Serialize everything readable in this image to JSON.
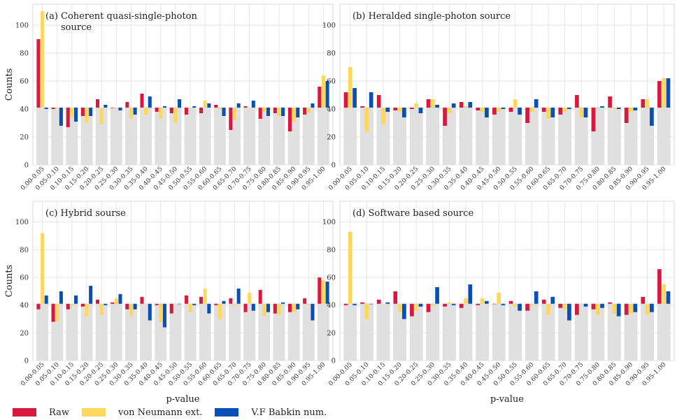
{
  "colors": {
    "raw": "#d7193f",
    "von_neumann": "#fdd85d",
    "babkin": "#0a4fb4",
    "baseline": "#e0e0e0",
    "grid": "#e6e6e6"
  },
  "chart_data": [
    {
      "type": "bar",
      "panel": "a",
      "title": "(a) Coherent quasi-single-photon",
      "title_line2": "source",
      "xlabel": "",
      "ylabel": "Counts",
      "ylim": [
        0,
        115
      ],
      "yticks": [
        0,
        20,
        40,
        60,
        80,
        100
      ],
      "baseline": 41,
      "grid": true,
      "categories": [
        "0.00-0.05",
        "0.05-0.10",
        "0.10-0.15",
        "0.15-0.20",
        "0.20-0.25",
        "0.25-0.30",
        "0.30-0.35",
        "0.35-0.40",
        "0.40-0.45",
        "0.45-0.50",
        "0.50-0.55",
        "0.55-0.60",
        "0.60-0.65",
        "0.65-0.70",
        "0.70-0.75",
        "0.75-0.80",
        "0.80-0.85",
        "0.85-0.90",
        "0.90-0.95",
        "0.95-1.00"
      ],
      "series": [
        {
          "name": "Raw",
          "values": [
            90,
            40,
            27,
            35,
            47,
            41,
            45,
            51,
            38,
            37,
            36,
            37,
            43,
            25,
            42,
            33,
            37,
            24,
            36,
            56
          ]
        },
        {
          "name": "von Neumann ext.",
          "values": [
            110,
            40,
            34,
            30,
            29,
            41,
            33,
            36,
            33,
            30,
            41,
            46,
            40,
            32,
            41,
            38,
            35,
            31,
            37,
            64
          ]
        },
        {
          "name": "V.F Babkin num.",
          "values": [
            40,
            28,
            31,
            35,
            43,
            39,
            36,
            49,
            42,
            47,
            42,
            44,
            35,
            44,
            46,
            35,
            35,
            34,
            44,
            60
          ]
        }
      ]
    },
    {
      "type": "bar",
      "panel": "b",
      "title": "(b) Heralded single-photon source",
      "xlabel": "",
      "ylabel": "",
      "ylim": [
        0,
        115
      ],
      "yticks": [
        0,
        20,
        40,
        60,
        80,
        100
      ],
      "baseline": 41,
      "grid": true,
      "categories": [
        "0.00-0.05",
        "0.05-0.10",
        "0.10-0.15",
        "0.15-0.20",
        "0.20-0.25",
        "0.25-0.30",
        "0.30-0.35",
        "0.35-0.40",
        "0.40-0.45",
        "0.45-0.50",
        "0.50-0.55",
        "0.55-0.60",
        "0.60-0.65",
        "0.65-0.70",
        "0.70-0.75",
        "0.75-0.80",
        "0.80-0.85",
        "0.85-0.90",
        "0.90-0.95",
        "0.95-1.00"
      ],
      "series": [
        {
          "name": "Raw",
          "values": [
            52,
            42,
            50,
            39,
            40,
            47,
            28,
            45,
            39,
            36,
            38,
            30,
            38,
            36,
            50,
            24,
            49,
            30,
            47,
            60
          ]
        },
        {
          "name": "von Neumann ext.",
          "values": [
            70,
            24,
            29,
            38,
            44,
            47,
            37,
            42,
            38,
            38,
            47,
            38,
            33,
            38,
            34,
            41,
            40,
            38,
            47,
            62
          ]
        },
        {
          "name": "V.F Babkin num.",
          "values": [
            55,
            52,
            38,
            34,
            37,
            43,
            44,
            45,
            34,
            40,
            36,
            47,
            34,
            40,
            34,
            42,
            40,
            39,
            28,
            62
          ]
        }
      ]
    },
    {
      "type": "bar",
      "panel": "c",
      "title": "(c) Hybrid sourse",
      "xlabel": "p-value",
      "ylabel": "Counts",
      "ylim": [
        0,
        115
      ],
      "yticks": [
        0,
        20,
        40,
        60,
        80,
        100
      ],
      "baseline": 41,
      "grid": true,
      "categories": [
        "0.00-0.05",
        "0.05-0.10",
        "0.10-0.15",
        "0.15-0.20",
        "0.20-0.25",
        "0.25-0.30",
        "0.30-0.35",
        "0.35-0.40",
        "0.40-0.45",
        "0.45-0.50",
        "0.50-0.55",
        "0.55-0.60",
        "0.60-0.65",
        "0.65-0.70",
        "0.70-0.75",
        "0.75-0.80",
        "0.80-0.85",
        "0.85-0.90",
        "0.90-0.95",
        "0.95-1.00"
      ],
      "series": [
        {
          "name": "Raw",
          "values": [
            37,
            28,
            37,
            39,
            44,
            42,
            37,
            46,
            40,
            34,
            47,
            46,
            40,
            45,
            35,
            51,
            34,
            35,
            45,
            60
          ]
        },
        {
          "name": "von Neumann ext.",
          "values": [
            92,
            28,
            40,
            32,
            33,
            45,
            32,
            41,
            28,
            41,
            35,
            52,
            30,
            40,
            49,
            32,
            33,
            35,
            40,
            58
          ]
        },
        {
          "name": "V.F Babkin num.",
          "values": [
            47,
            50,
            47,
            54,
            40,
            48,
            37,
            29,
            24,
            41,
            40,
            34,
            43,
            52,
            36,
            35,
            42,
            37,
            29,
            57
          ]
        }
      ]
    },
    {
      "type": "bar",
      "panel": "d",
      "title": "(d) Software based source",
      "xlabel": "p-value",
      "ylabel": "",
      "ylim": [
        0,
        115
      ],
      "yticks": [
        0,
        20,
        40,
        60,
        80,
        100
      ],
      "baseline": 41,
      "grid": true,
      "categories": [
        "0.00-0.05",
        "0.05-0.10",
        "0.10-0.15",
        "0.15-0.20",
        "0.20-0.25",
        "0.25-0.30",
        "0.30-0.35",
        "0.35-0.40",
        "0.40-0.45",
        "0.45-0.50",
        "0.50-0.55",
        "0.55-0.60",
        "0.60-0.65",
        "0.65-0.70",
        "0.70-0.75",
        "0.75-0.80",
        "0.80-0.85",
        "0.85-0.90",
        "0.90-0.95",
        "0.95-1.00"
      ],
      "series": [
        {
          "name": "Raw",
          "values": [
            40,
            42,
            44,
            50,
            32,
            35,
            39,
            38,
            40,
            41,
            43,
            36,
            44,
            38,
            33,
            37,
            42,
            33,
            46,
            66
          ]
        },
        {
          "name": "von Neumann ext.",
          "values": [
            93,
            30,
            41,
            35,
            36,
            40,
            42,
            45,
            45,
            49,
            39,
            40,
            33,
            37,
            41,
            33,
            34,
            34,
            33,
            55
          ]
        },
        {
          "name": "V.F Babkin num.",
          "values": [
            40,
            41,
            42,
            30,
            39,
            53,
            40,
            55,
            43,
            40,
            36,
            50,
            46,
            29,
            39,
            38,
            32,
            35,
            35,
            50
          ]
        }
      ]
    }
  ],
  "legend": {
    "items": [
      {
        "label": "Raw",
        "color": "#d7193f"
      },
      {
        "label": "von Neumann ext.",
        "color": "#fdd85d"
      },
      {
        "label": "V.F Babkin num.",
        "color": "#0a4fb4"
      }
    ]
  }
}
